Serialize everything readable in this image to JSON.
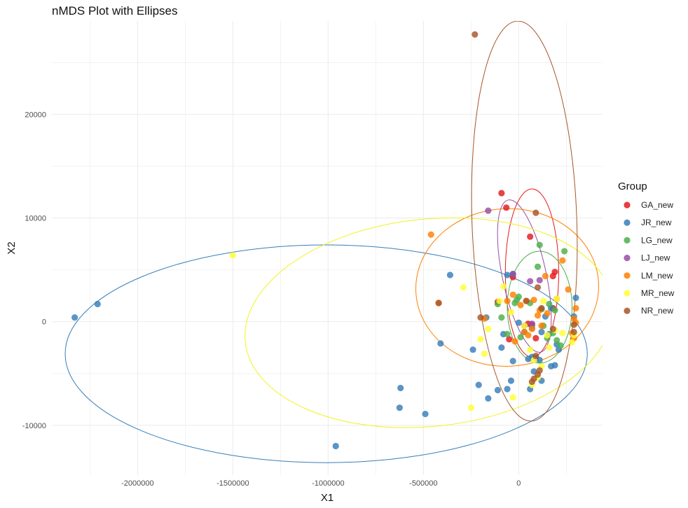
{
  "chart_data": {
    "type": "scatter",
    "title": "nMDS Plot with Ellipses",
    "xlabel": "X1",
    "ylabel": "X2",
    "xlim": [
      -2450000,
      440000
    ],
    "ylim": [
      -14800,
      29000
    ],
    "x_ticks": [
      -2000000,
      -1500000,
      -1000000,
      -500000,
      0
    ],
    "x_tick_labels": [
      "-2000000",
      "-1500000",
      "-1000000",
      "-500000",
      "0"
    ],
    "y_ticks": [
      -10000,
      0,
      10000,
      20000
    ],
    "y_tick_labels": [
      "-10000",
      "0",
      "10000",
      "20000"
    ],
    "grid": true,
    "legend": {
      "title": "Group",
      "position": "right"
    },
    "series": [
      {
        "name": "GA_new",
        "color": "#E41A1C",
        "ellipse": {
          "cx": 70000,
          "cy": 4700,
          "rx": 140000,
          "ry": 8100,
          "rotation": 0
        },
        "points": [
          [
            -90000,
            12400
          ],
          [
            -65000,
            11000
          ],
          [
            -30000,
            4300
          ],
          [
            60000,
            8200
          ],
          [
            190000,
            4800
          ],
          [
            180000,
            4400
          ],
          [
            -110000,
            1900
          ],
          [
            180000,
            1300
          ],
          [
            50000,
            -200
          ],
          [
            70000,
            -300
          ],
          [
            -50000,
            -1700
          ],
          [
            90000,
            -1600
          ]
        ]
      },
      {
        "name": "JR_new",
        "color": "#377EB8",
        "ellipse": {
          "cx": -1010000,
          "cy": -3100,
          "rx": 1370000,
          "ry": 10500,
          "rotation": 0
        },
        "points": [
          [
            -2330000,
            400
          ],
          [
            -2210000,
            1700
          ],
          [
            -960000,
            -12000
          ],
          [
            -620000,
            -6400
          ],
          [
            -625000,
            -8300
          ],
          [
            -490000,
            -8900
          ],
          [
            -410000,
            -2100
          ],
          [
            -360000,
            4500
          ],
          [
            -240000,
            -2700
          ],
          [
            -210000,
            -6100
          ],
          [
            -160000,
            -7400
          ],
          [
            -110000,
            -6600
          ],
          [
            -60000,
            -6500
          ],
          [
            -40000,
            -5700
          ],
          [
            -30000,
            -3800
          ],
          [
            -170000,
            400
          ],
          [
            -90000,
            -2500
          ],
          [
            -60000,
            4500
          ],
          [
            -30000,
            4600
          ],
          [
            0,
            -100
          ],
          [
            30000,
            -1000
          ],
          [
            50000,
            -3600
          ],
          [
            70000,
            -3400
          ],
          [
            80000,
            -4800
          ],
          [
            90000,
            -3500
          ],
          [
            110000,
            -3700
          ],
          [
            120000,
            -5700
          ],
          [
            140000,
            500
          ],
          [
            160000,
            -1200
          ],
          [
            170000,
            -4300
          ],
          [
            190000,
            -4200
          ],
          [
            200000,
            -2200
          ],
          [
            210000,
            -2700
          ],
          [
            60000,
            -6500
          ],
          [
            300000,
            2300
          ],
          [
            290000,
            500
          ],
          [
            170000,
            1300
          ],
          [
            -80000,
            -1200
          ],
          [
            120000,
            -1000
          ],
          [
            70000,
            -600
          ]
        ]
      },
      {
        "name": "LG_new",
        "color": "#4DAF4A",
        "ellipse": {
          "cx": 110000,
          "cy": 1400,
          "rx": 170000,
          "ry": 5400,
          "rotation": 0
        },
        "points": [
          [
            -110000,
            1700
          ],
          [
            -90000,
            400
          ],
          [
            -60000,
            -1200
          ],
          [
            -20000,
            1800
          ],
          [
            0,
            2400
          ],
          [
            10000,
            -1500
          ],
          [
            60000,
            1800
          ],
          [
            110000,
            7400
          ],
          [
            130000,
            -400
          ],
          [
            150000,
            -1600
          ],
          [
            180000,
            -1100
          ],
          [
            200000,
            -1800
          ],
          [
            220000,
            -2300
          ],
          [
            240000,
            6800
          ],
          [
            120000,
            1200
          ],
          [
            160000,
            1700
          ],
          [
            190000,
            1100
          ],
          [
            100000,
            5300
          ],
          [
            -10000,
            2100
          ]
        ]
      },
      {
        "name": "LJ_new",
        "color": "#984EA3",
        "ellipse": {
          "cx": 30000,
          "cy": 4400,
          "rx": 115000,
          "ry": 7500,
          "rotation": -12
        },
        "points": [
          [
            -160000,
            10700
          ],
          [
            -30000,
            4600
          ],
          [
            60000,
            3900
          ],
          [
            110000,
            4000
          ],
          [
            70000,
            -200
          ],
          [
            30000,
            -400
          ]
        ]
      },
      {
        "name": "LM_new",
        "color": "#FF7F00",
        "ellipse": {
          "cx": -60000,
          "cy": 3300,
          "rx": 480000,
          "ry": 7600,
          "rotation": -3
        },
        "points": [
          [
            -460000,
            8400
          ],
          [
            -420000,
            1800
          ],
          [
            -180000,
            300
          ],
          [
            -60000,
            2000
          ],
          [
            -30000,
            2600
          ],
          [
            10000,
            1600
          ],
          [
            40000,
            2000
          ],
          [
            80000,
            2100
          ],
          [
            110000,
            1100
          ],
          [
            120000,
            -400
          ],
          [
            140000,
            4400
          ],
          [
            150000,
            800
          ],
          [
            200000,
            2200
          ],
          [
            230000,
            5900
          ],
          [
            260000,
            3100
          ],
          [
            280000,
            -1100
          ],
          [
            290000,
            300
          ],
          [
            300000,
            1300
          ],
          [
            300000,
            -100
          ],
          [
            290000,
            -1600
          ],
          [
            -20000,
            -1900
          ],
          [
            30000,
            -1000
          ],
          [
            50000,
            -1300
          ],
          [
            70000,
            -700
          ],
          [
            100000,
            600
          ]
        ]
      },
      {
        "name": "MR_new",
        "color": "#FFFF33",
        "ellipse": {
          "cx": -470000,
          "cy": -100,
          "rx": 970000,
          "ry": 10000,
          "rotation": -6
        },
        "points": [
          [
            -1500000,
            6400
          ],
          [
            -290000,
            3300
          ],
          [
            -250000,
            -8300
          ],
          [
            -200000,
            -1700
          ],
          [
            -180000,
            -3100
          ],
          [
            -160000,
            -700
          ],
          [
            -100000,
            2000
          ],
          [
            -80000,
            3400
          ],
          [
            -30000,
            -7300
          ],
          [
            30000,
            -400
          ],
          [
            60000,
            -2700
          ],
          [
            80000,
            -3700
          ],
          [
            100000,
            -5400
          ],
          [
            120000,
            -4300
          ],
          [
            130000,
            2000
          ],
          [
            150000,
            -1300
          ],
          [
            160000,
            -2500
          ],
          [
            200000,
            2200
          ],
          [
            230000,
            -1100
          ],
          [
            280000,
            -2000
          ],
          [
            290000,
            -1300
          ],
          [
            70000,
            -6100
          ],
          [
            -40000,
            900
          ],
          [
            190000,
            -800
          ]
        ]
      },
      {
        "name": "NR_new",
        "color": "#A65628",
        "ellipse": {
          "cx": 30000,
          "cy": 9700,
          "rx": 275000,
          "ry": 19300,
          "rotation": -2
        },
        "points": [
          [
            -230000,
            27700
          ],
          [
            -420000,
            1800
          ],
          [
            -200000,
            400
          ],
          [
            90000,
            10500
          ],
          [
            100000,
            3300
          ],
          [
            90000,
            -3300
          ],
          [
            70000,
            -5800
          ],
          [
            100000,
            -5100
          ],
          [
            120000,
            1300
          ],
          [
            180000,
            -700
          ],
          [
            290000,
            -1000
          ],
          [
            290000,
            -300
          ],
          [
            40000,
            2000
          ],
          [
            80000,
            -5500
          ],
          [
            110000,
            -4700
          ]
        ]
      }
    ]
  }
}
